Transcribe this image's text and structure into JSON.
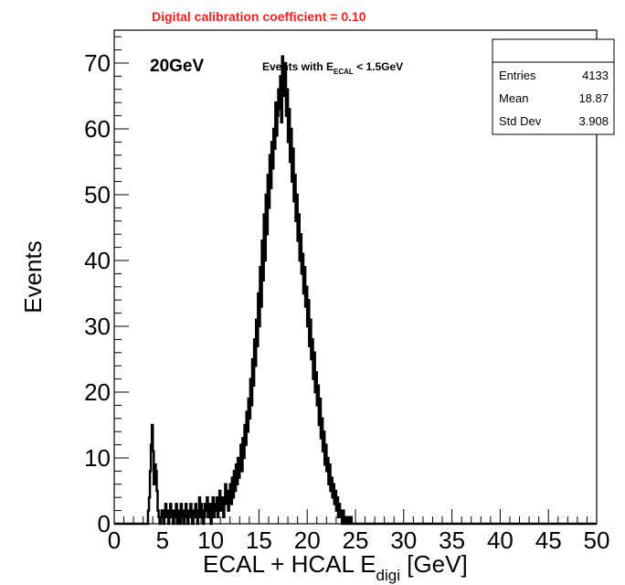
{
  "chart_data": {
    "type": "bar",
    "histogram_style": "step",
    "title": "Digital calibration coefficient = 0.10",
    "title_color": "#ff2020",
    "xlabel_main": "ECAL + HCAL E",
    "xlabel_sub": "digi",
    "xlabel_unit": " [GeV]",
    "ylabel": "Events",
    "xlim": [
      0,
      50
    ],
    "ylim": [
      0,
      75
    ],
    "x_ticks": [
      0,
      5,
      10,
      15,
      20,
      25,
      30,
      35,
      40,
      45,
      50
    ],
    "y_ticks": [
      0,
      10,
      20,
      30,
      40,
      50,
      60,
      70
    ],
    "grid": false,
    "line_color": "#000000",
    "annotations": {
      "energy_label": "20GeV",
      "cut_prefix": "Events with E",
      "cut_sub": "ECAL",
      "cut_suffix": " < 1.5GeV"
    },
    "stats": {
      "entries_label": "Entries",
      "entries_value": "4133",
      "mean_label": "Mean",
      "mean_value": "18.87",
      "std_label": "Std Dev",
      "std_value": "3.908"
    },
    "bin_width": 0.1,
    "bin_start": 3.0,
    "values": [
      0,
      0,
      0,
      0,
      0,
      2,
      4,
      8,
      12,
      15,
      11,
      6,
      9,
      8,
      5,
      2,
      1,
      0,
      1,
      2,
      1,
      0,
      2,
      3,
      1,
      2,
      0,
      1,
      3,
      2,
      1,
      0,
      2,
      1,
      3,
      0,
      2,
      1,
      0,
      3,
      2,
      1,
      0,
      2,
      3,
      1,
      0,
      2,
      1,
      3,
      2,
      0,
      1,
      2,
      3,
      1,
      0,
      2,
      4,
      1,
      3,
      2,
      0,
      1,
      3,
      2,
      4,
      1,
      2,
      3,
      0,
      2,
      4,
      1,
      3,
      2,
      4,
      1,
      3,
      5,
      2,
      4,
      3,
      1,
      4,
      6,
      3,
      5,
      2,
      4,
      6,
      3,
      7,
      4,
      8,
      5,
      9,
      6,
      10,
      7,
      9,
      12,
      8,
      13,
      10,
      15,
      12,
      17,
      14,
      19,
      16,
      22,
      18,
      25,
      21,
      28,
      24,
      31,
      27,
      35,
      30,
      39,
      33,
      43,
      37,
      47,
      40,
      50,
      44,
      53,
      48,
      56,
      51,
      58,
      54,
      60,
      57,
      64,
      59,
      62,
      66,
      63,
      68,
      61,
      71,
      65,
      67,
      70,
      62,
      66,
      58,
      63,
      55,
      60,
      52,
      57,
      49,
      53,
      46,
      50,
      43,
      47,
      40,
      44,
      38,
      41,
      35,
      39,
      33,
      36,
      30,
      34,
      27,
      31,
      25,
      28,
      22,
      26,
      20,
      23,
      18,
      21,
      15,
      19,
      13,
      16,
      11,
      14,
      9,
      12,
      8,
      10,
      6,
      9,
      5,
      7,
      4,
      6,
      3,
      5,
      2,
      4,
      1,
      3,
      2,
      1,
      0,
      2,
      1,
      0,
      1,
      0,
      0,
      1,
      0,
      1,
      0,
      0,
      0,
      0,
      0
    ]
  }
}
